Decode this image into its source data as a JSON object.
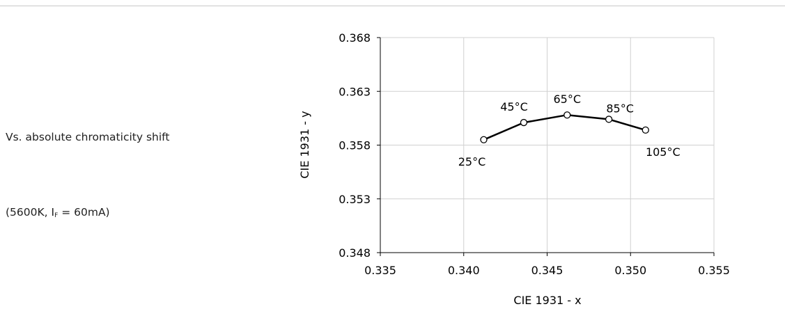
{
  "captions": {
    "line1": "Vs. absolute chromaticity shift",
    "line2_prefix": "(5600K, I",
    "line2_sub": "F",
    "line2_suffix": " = 60mA)"
  },
  "chart_data": {
    "type": "line",
    "title": "",
    "xlabel": "CIE 1931 - x",
    "ylabel": "CIE 1931 - y",
    "xlim": [
      0.335,
      0.355
    ],
    "ylim": [
      0.348,
      0.368
    ],
    "xticks": [
      "0.335",
      "0.340",
      "0.345",
      "0.350",
      "0.355"
    ],
    "yticks": [
      "0.348",
      "0.353",
      "0.358",
      "0.363",
      "0.368"
    ],
    "grid": true,
    "series": [
      {
        "points": [
          {
            "x": 0.3412,
            "y": 0.3585,
            "label": "25°C"
          },
          {
            "x": 0.3436,
            "y": 0.3601,
            "label": "45°C"
          },
          {
            "x": 0.3462,
            "y": 0.3608,
            "label": "65°C"
          },
          {
            "x": 0.3487,
            "y": 0.3604,
            "label": "85°C"
          },
          {
            "x": 0.3509,
            "y": 0.3594,
            "label": "105°C"
          }
        ]
      }
    ]
  }
}
